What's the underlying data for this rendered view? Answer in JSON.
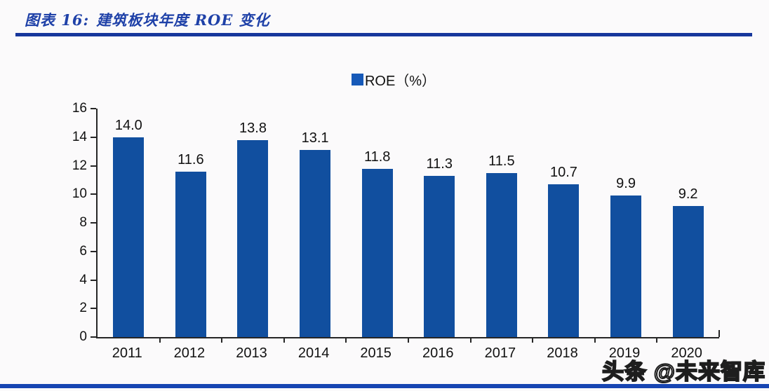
{
  "figure": {
    "label": "图表 16:",
    "title": "建筑板块年度 ROE 变化"
  },
  "legend": {
    "label": "ROE（%）",
    "swatch_color": "#1659b8"
  },
  "chart_data": {
    "type": "bar",
    "title": "建筑板块年度 ROE 变化",
    "categories": [
      "2011",
      "2012",
      "2013",
      "2014",
      "2015",
      "2016",
      "2017",
      "2018",
      "2019",
      "2020"
    ],
    "values": [
      14.0,
      11.6,
      13.8,
      13.1,
      11.8,
      11.3,
      11.5,
      10.7,
      9.9,
      9.2
    ],
    "series_name": "ROE（%）",
    "xlabel": "",
    "ylabel": "",
    "ylim": [
      0,
      16
    ],
    "yticks": [
      0,
      2,
      4,
      6,
      8,
      10,
      12,
      14,
      16
    ],
    "grid": false,
    "legend_position": "top-center",
    "bar_color": "#114f9f",
    "value_label_decimals": 1
  },
  "watermark": "头条 @未来智库",
  "colors": {
    "bar": "#114f9f",
    "legend_swatch": "#1659b8",
    "title_blue": "#1f41a8",
    "top_rule": "#17379c",
    "bottom_rule": "#1745b2",
    "axis": "#262626",
    "background": "#fbfafb"
  }
}
